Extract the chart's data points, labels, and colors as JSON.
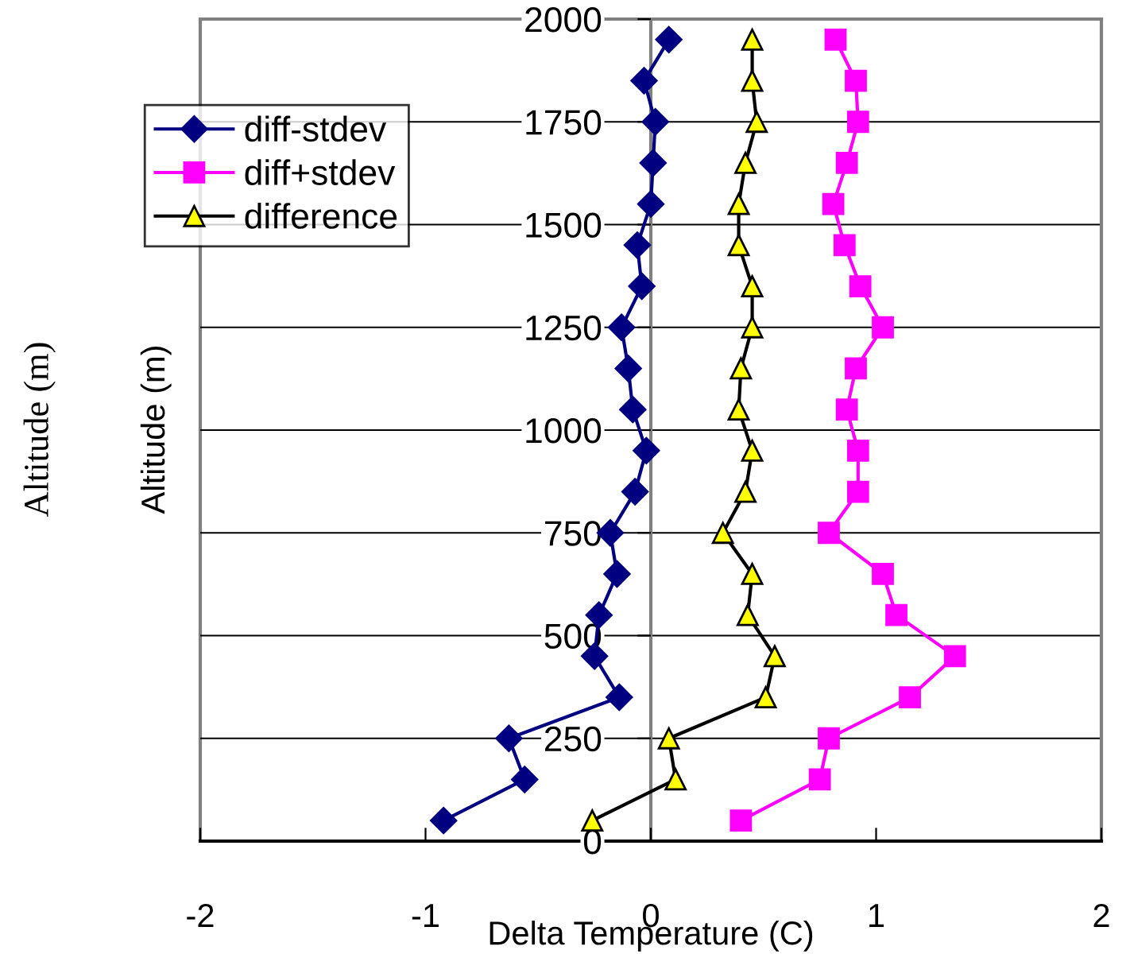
{
  "chart_data": {
    "type": "line",
    "xlabel": "Delta Temperature (C)",
    "ylabel": "Altitude (m)",
    "annotations": [
      "Altitude (m)"
    ],
    "xlim": [
      -2,
      2
    ],
    "xticks": [
      -2,
      -1,
      0,
      1,
      2
    ],
    "ylim": [
      0,
      2000
    ],
    "yticks": [
      0,
      250,
      500,
      750,
      1000,
      1250,
      1500,
      1750,
      2000
    ],
    "grid": "y",
    "legend": "top left",
    "line_style": "solid",
    "series": [
      {
        "name": "diff-stdev",
        "color": "#000080",
        "marker": "diamond",
        "values": [
          50,
          150,
          250,
          350,
          450,
          550,
          650,
          750,
          850,
          950,
          1050,
          1150,
          1250,
          1350,
          1450,
          1550,
          1650,
          1750,
          1850,
          1950
        ],
        "x": [
          -0.92,
          -0.56,
          -0.63,
          -0.14,
          -0.25,
          -0.23,
          -0.15,
          -0.18,
          -0.07,
          -0.02,
          -0.08,
          -0.1,
          -0.13,
          -0.04,
          -0.06,
          0.0,
          0.01,
          0.02,
          -0.03,
          0.08
        ]
      },
      {
        "name": "diff+stdev",
        "color": "#ff00ff",
        "marker": "square",
        "values": [
          50,
          150,
          250,
          350,
          450,
          550,
          650,
          750,
          850,
          950,
          1050,
          1150,
          1250,
          1350,
          1450,
          1550,
          1650,
          1750,
          1850,
          1950
        ],
        "x": [
          0.4,
          0.75,
          0.79,
          1.15,
          1.35,
          1.09,
          1.03,
          0.79,
          0.92,
          0.92,
          0.87,
          0.91,
          1.03,
          0.93,
          0.86,
          0.81,
          0.87,
          0.92,
          0.91,
          0.82
        ]
      },
      {
        "name": "difference",
        "color": "#000000",
        "marker": "triangle",
        "values": [
          50,
          150,
          250,
          350,
          450,
          550,
          650,
          750,
          850,
          950,
          1050,
          1150,
          1250,
          1350,
          1450,
          1550,
          1650,
          1750,
          1850,
          1950
        ],
        "x": [
          -0.26,
          0.11,
          0.08,
          0.51,
          0.55,
          0.43,
          0.45,
          0.32,
          0.42,
          0.45,
          0.39,
          0.4,
          0.45,
          0.45,
          0.39,
          0.39,
          0.42,
          0.47,
          0.45,
          0.45
        ]
      }
    ]
  }
}
